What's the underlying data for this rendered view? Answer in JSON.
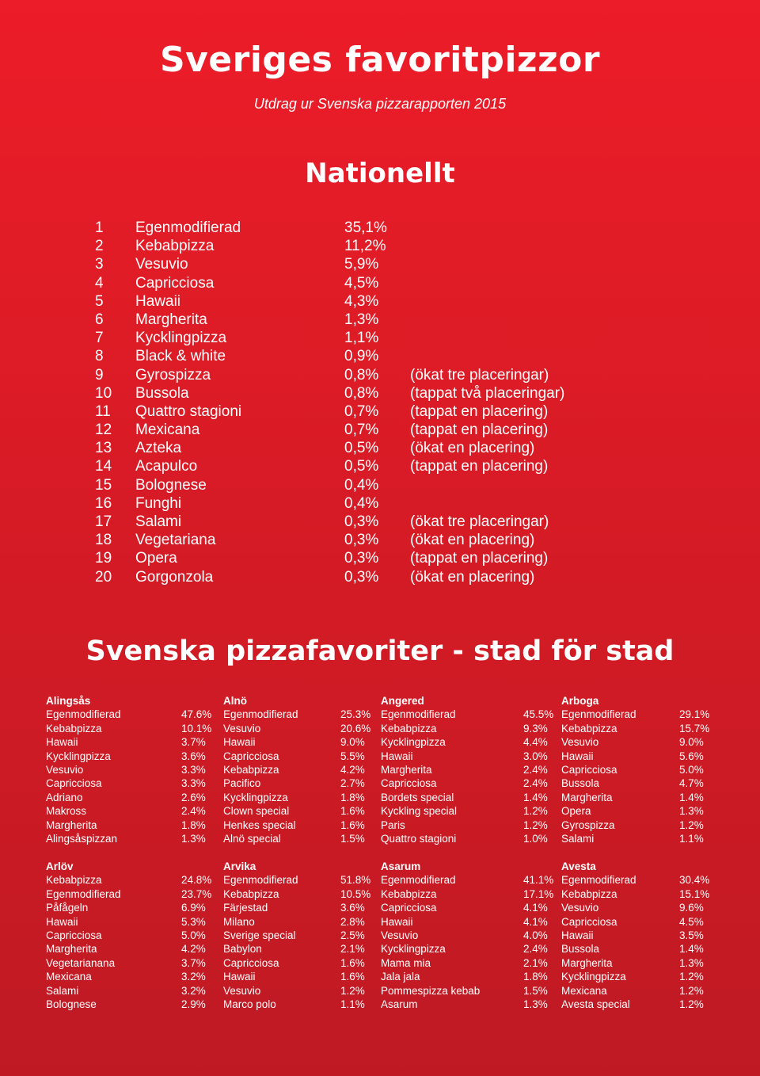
{
  "header": {
    "title": "Sveriges favoritpizzor",
    "subtitle": "Utdrag ur Svenska pizzarapporten 2015"
  },
  "national": {
    "heading": "Nationellt",
    "rows": [
      {
        "rank": "1",
        "name": "Egenmodifierad",
        "pct": "35,1%",
        "note": ""
      },
      {
        "rank": "2",
        "name": "Kebabpizza",
        "pct": "11,2%",
        "note": ""
      },
      {
        "rank": "3",
        "name": "Vesuvio",
        "pct": "5,9%",
        "note": ""
      },
      {
        "rank": "4",
        "name": "Capricciosa",
        "pct": "4,5%",
        "note": ""
      },
      {
        "rank": "5",
        "name": "Hawaii",
        "pct": "4,3%",
        "note": ""
      },
      {
        "rank": "6",
        "name": "Margherita",
        "pct": "1,3%",
        "note": ""
      },
      {
        "rank": "7",
        "name": "Kycklingpizza",
        "pct": "1,1%",
        "note": ""
      },
      {
        "rank": "8",
        "name": "Black & white",
        "pct": "0,9%",
        "note": ""
      },
      {
        "rank": "9",
        "name": "Gyrospizza",
        "pct": "0,8%",
        "note": "(ökat tre placeringar)"
      },
      {
        "rank": "10",
        "name": "Bussola",
        "pct": "0,8%",
        "note": "(tappat två placeringar)"
      },
      {
        "rank": "11",
        "name": "Quattro stagioni",
        "pct": "0,7%",
        "note": "(tappat en placering)"
      },
      {
        "rank": "12",
        "name": "Mexicana",
        "pct": "0,7%",
        "note": "(tappat en placering)"
      },
      {
        "rank": "13",
        "name": "Azteka",
        "pct": "0,5%",
        "note": "(ökat en placering)"
      },
      {
        "rank": "14",
        "name": "Acapulco",
        "pct": "0,5%",
        "note": "(tappat en placering)"
      },
      {
        "rank": "15",
        "name": "Bolognese",
        "pct": "0,4%",
        "note": ""
      },
      {
        "rank": "16",
        "name": "Funghi",
        "pct": "0,4%",
        "note": ""
      },
      {
        "rank": "17",
        "name": "Salami",
        "pct": "0,3%",
        "note": "(ökat tre placeringar)"
      },
      {
        "rank": "18",
        "name": "Vegetariana",
        "pct": "0,3%",
        "note": "(ökat en placering)"
      },
      {
        "rank": "19",
        "name": "Opera",
        "pct": "0,3%",
        "note": "(tappat en placering)"
      },
      {
        "rank": "20",
        "name": "Gorgonzola",
        "pct": "0,3%",
        "note": "(ökat en placering)"
      }
    ]
  },
  "cities_heading": "Svenska pizzafavoriter - stad för stad",
  "cities": [
    {
      "name": "Alingsås",
      "items": [
        {
          "name": "Egenmodifierad",
          "pct": "47.6%"
        },
        {
          "name": "Kebabpizza",
          "pct": "10.1%"
        },
        {
          "name": "Hawaii",
          "pct": "3.7%"
        },
        {
          "name": "Kycklingpizza",
          "pct": "3.6%"
        },
        {
          "name": "Vesuvio",
          "pct": "3.3%"
        },
        {
          "name": "Capricciosa",
          "pct": "3.3%"
        },
        {
          "name": "Adriano",
          "pct": "2.6%"
        },
        {
          "name": "Makross",
          "pct": "2.4%"
        },
        {
          "name": "Margherita",
          "pct": "1.8%"
        },
        {
          "name": "Alingsåspizzan",
          "pct": "1.3%"
        }
      ]
    },
    {
      "name": "Alnö",
      "items": [
        {
          "name": "Egenmodifierad",
          "pct": "25.3%"
        },
        {
          "name": "Vesuvio",
          "pct": "20.6%"
        },
        {
          "name": "Hawaii",
          "pct": "9.0%"
        },
        {
          "name": "Capricciosa",
          "pct": "5.5%"
        },
        {
          "name": "Kebabpizza",
          "pct": "4.2%"
        },
        {
          "name": "Pacifico",
          "pct": "2.7%"
        },
        {
          "name": "Kycklingpizza",
          "pct": "1.8%"
        },
        {
          "name": "Clown special",
          "pct": "1.6%"
        },
        {
          "name": "Henkes special",
          "pct": "1.6%"
        },
        {
          "name": "Alnö special",
          "pct": "1.5%"
        }
      ]
    },
    {
      "name": "Angered",
      "items": [
        {
          "name": "Egenmodifierad",
          "pct": "45.5%"
        },
        {
          "name": "Kebabpizza",
          "pct": "9.3%"
        },
        {
          "name": "Kycklingpizza",
          "pct": "4.4%"
        },
        {
          "name": "Hawaii",
          "pct": "3.0%"
        },
        {
          "name": "Margherita",
          "pct": "2.4%"
        },
        {
          "name": "Capricciosa",
          "pct": "2.4%"
        },
        {
          "name": "Bordets special",
          "pct": "1.4%"
        },
        {
          "name": "Kyckling special",
          "pct": "1.2%"
        },
        {
          "name": "Paris",
          "pct": "1.2%"
        },
        {
          "name": "Quattro stagioni",
          "pct": "1.0%"
        }
      ]
    },
    {
      "name": "Arboga",
      "items": [
        {
          "name": "Egenmodifierad",
          "pct": "29.1%"
        },
        {
          "name": "Kebabpizza",
          "pct": "15.7%"
        },
        {
          "name": "Vesuvio",
          "pct": "9.0%"
        },
        {
          "name": "Hawaii",
          "pct": "5.6%"
        },
        {
          "name": "Capricciosa",
          "pct": "5.0%"
        },
        {
          "name": "Bussola",
          "pct": "4.7%"
        },
        {
          "name": "Margherita",
          "pct": "1.4%"
        },
        {
          "name": "Opera",
          "pct": "1.3%"
        },
        {
          "name": "Gyrospizza",
          "pct": "1.2%"
        },
        {
          "name": "Salami",
          "pct": "1.1%"
        }
      ]
    },
    {
      "name": "Arlöv",
      "items": [
        {
          "name": "Kebabpizza",
          "pct": "24.8%"
        },
        {
          "name": "Egenmodifierad",
          "pct": "23.7%"
        },
        {
          "name": "Påfågeln",
          "pct": "6.9%"
        },
        {
          "name": "Hawaii",
          "pct": "5.3%"
        },
        {
          "name": "Capricciosa",
          "pct": "5.0%"
        },
        {
          "name": "Margherita",
          "pct": "4.2%"
        },
        {
          "name": "Vegetarianana",
          "pct": "3.7%"
        },
        {
          "name": "Mexicana",
          "pct": "3.2%"
        },
        {
          "name": "Salami",
          "pct": "3.2%"
        },
        {
          "name": "Bolognese",
          "pct": "2.9%"
        }
      ]
    },
    {
      "name": "Arvika",
      "items": [
        {
          "name": "Egenmodifierad",
          "pct": "51.8%"
        },
        {
          "name": "Kebabpizza",
          "pct": "10.5%"
        },
        {
          "name": "Färjestad",
          "pct": "3.6%"
        },
        {
          "name": "Milano",
          "pct": "2.8%"
        },
        {
          "name": "Sverige special",
          "pct": "2.5%"
        },
        {
          "name": "Babylon",
          "pct": "2.1%"
        },
        {
          "name": "Capricciosa",
          "pct": "1.6%"
        },
        {
          "name": "Hawaii",
          "pct": "1.6%"
        },
        {
          "name": "Vesuvio",
          "pct": "1.2%"
        },
        {
          "name": "Marco polo",
          "pct": "1.1%"
        }
      ]
    },
    {
      "name": "Asarum",
      "items": [
        {
          "name": "Egenmodifierad",
          "pct": "41.1%"
        },
        {
          "name": "Kebabpizza",
          "pct": "17.1%"
        },
        {
          "name": "Capricciosa",
          "pct": "4.1%"
        },
        {
          "name": "Hawaii",
          "pct": "4.1%"
        },
        {
          "name": "Vesuvio",
          "pct": "4.0%"
        },
        {
          "name": "Kycklingpizza",
          "pct": "2.4%"
        },
        {
          "name": "Mama mia",
          "pct": "2.1%"
        },
        {
          "name": "Jala jala",
          "pct": "1.8%"
        },
        {
          "name": "Pommespizza kebab",
          "pct": "1.5%"
        },
        {
          "name": "Asarum",
          "pct": "1.3%"
        }
      ]
    },
    {
      "name": "Avesta",
      "items": [
        {
          "name": "Egenmodifierad",
          "pct": "30.4%"
        },
        {
          "name": "Kebabpizza",
          "pct": "15.1%"
        },
        {
          "name": "Vesuvio",
          "pct": "9.6%"
        },
        {
          "name": "Capricciosa",
          "pct": "4.5%"
        },
        {
          "name": "Hawaii",
          "pct": "3.5%"
        },
        {
          "name": "Bussola",
          "pct": "1.4%"
        },
        {
          "name": "Margherita",
          "pct": "1.3%"
        },
        {
          "name": "Kycklingpizza",
          "pct": "1.2%"
        },
        {
          "name": "Mexicana",
          "pct": "1.2%"
        },
        {
          "name": "Avesta special",
          "pct": "1.2%"
        }
      ]
    }
  ]
}
